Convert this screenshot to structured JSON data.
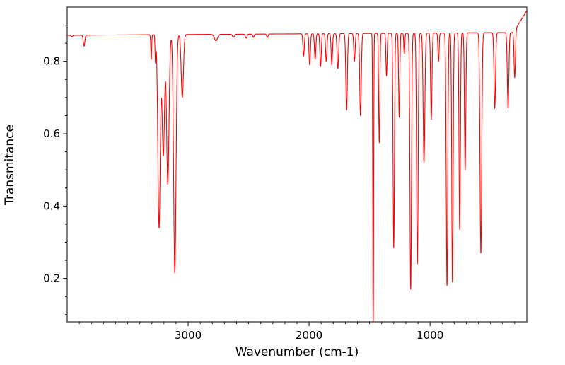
{
  "figure": {
    "background": "#ffffff",
    "axis_color": "#000000",
    "text_color": "#000000"
  },
  "chart_data": {
    "type": "line",
    "title": "",
    "xlabel": "Wavenumber (cm-1)",
    "ylabel": "Transmitance",
    "line_color": "#ff0000",
    "grid": false,
    "legend": "none",
    "x_axis": {
      "min": 200,
      "max": 4000,
      "inverted": true,
      "major_ticks": [
        3000,
        2000,
        1000
      ],
      "tick_labels": [
        "3000",
        "2000",
        "1000"
      ],
      "minor_tick_step": 100
    },
    "y_axis": {
      "min": 0.08,
      "max": 0.95,
      "major_ticks": [
        0.2,
        0.4,
        0.6,
        0.8
      ],
      "tick_labels": [
        "0.2",
        "0.4",
        "0.6",
        "0.8"
      ],
      "minor_tick_step": 0.05
    },
    "baseline": {
      "start": 0.872,
      "end": 0.88,
      "edge_rise_below": 310,
      "edge_rise_rate": 0.00055,
      "max_value": 0.94
    },
    "peaks_format": "[wavenumber_cm-1, min_transmittance, gaussian_width_cm-1]",
    "peaks": [
      [
        3960,
        0.868,
        10
      ],
      [
        3860,
        0.842,
        9
      ],
      [
        3305,
        0.805,
        5
      ],
      [
        3270,
        0.8,
        5
      ],
      [
        3240,
        0.34,
        14
      ],
      [
        3205,
        0.54,
        14
      ],
      [
        3168,
        0.46,
        14
      ],
      [
        3110,
        0.215,
        14
      ],
      [
        3048,
        0.7,
        13
      ],
      [
        2770,
        0.857,
        18
      ],
      [
        2625,
        0.867,
        12
      ],
      [
        2520,
        0.864,
        10
      ],
      [
        2460,
        0.866,
        8
      ],
      [
        2345,
        0.866,
        8
      ],
      [
        2045,
        0.815,
        8
      ],
      [
        1995,
        0.79,
        8
      ],
      [
        1950,
        0.805,
        8
      ],
      [
        1905,
        0.785,
        8
      ],
      [
        1858,
        0.8,
        8
      ],
      [
        1812,
        0.79,
        8
      ],
      [
        1762,
        0.78,
        9
      ],
      [
        1690,
        0.665,
        9
      ],
      [
        1625,
        0.8,
        8
      ],
      [
        1575,
        0.65,
        9
      ],
      [
        1470,
        0.02,
        5
      ],
      [
        1420,
        0.575,
        7
      ],
      [
        1360,
        0.76,
        7
      ],
      [
        1300,
        0.285,
        8
      ],
      [
        1255,
        0.645,
        7
      ],
      [
        1213,
        0.82,
        6
      ],
      [
        1160,
        0.17,
        9
      ],
      [
        1105,
        0.24,
        9
      ],
      [
        1050,
        0.52,
        10
      ],
      [
        990,
        0.64,
        8
      ],
      [
        930,
        0.8,
        7
      ],
      [
        860,
        0.18,
        9
      ],
      [
        815,
        0.19,
        8
      ],
      [
        755,
        0.335,
        8
      ],
      [
        710,
        0.5,
        8
      ],
      [
        580,
        0.27,
        10
      ],
      [
        465,
        0.67,
        9
      ],
      [
        355,
        0.67,
        9
      ],
      [
        300,
        0.755,
        8
      ]
    ]
  }
}
